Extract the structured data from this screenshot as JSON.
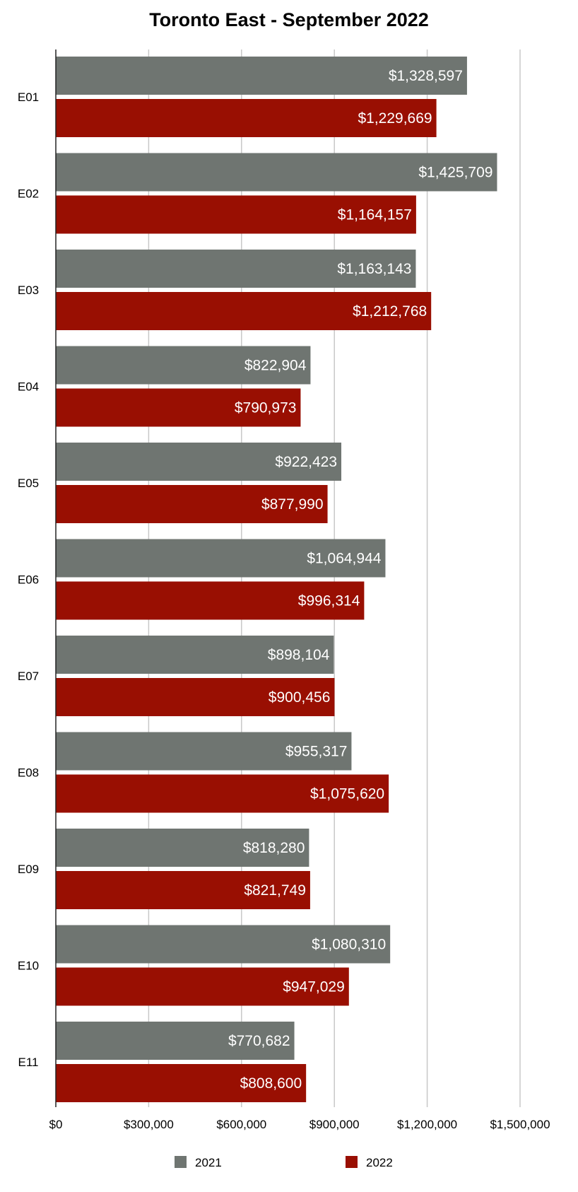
{
  "chart_data": {
    "type": "bar",
    "orientation": "horizontal",
    "title": "Toronto East - September 2022",
    "xlabel": "",
    "ylabel": "",
    "categories": [
      "E01",
      "E02",
      "E03",
      "E04",
      "E05",
      "E06",
      "E07",
      "E08",
      "E09",
      "E10",
      "E11"
    ],
    "xlim": [
      0,
      1500000
    ],
    "xticks": [
      0,
      300000,
      600000,
      900000,
      1200000,
      1500000
    ],
    "xtick_labels": [
      "$0",
      "$300,000",
      "$600,000",
      "$900,000",
      "$1,200,000",
      "$1,500,000"
    ],
    "grid": true,
    "legend_position": "bottom",
    "series": [
      {
        "name": "2021",
        "color": "#6f7571",
        "values": [
          1328597,
          1425709,
          1163143,
          822904,
          922423,
          1064944,
          898104,
          955317,
          818280,
          1080310,
          770682
        ],
        "labels": [
          "$1,328,597",
          "$1,425,709",
          "$1,163,143",
          "$822,904",
          "$922,423",
          "$1,064,944",
          "$898,104",
          "$955,317",
          "$818,280",
          "$1,080,310",
          "$770,682"
        ]
      },
      {
        "name": "2022",
        "color": "#990f02",
        "values": [
          1229669,
          1164157,
          1212768,
          790973,
          877990,
          996314,
          900456,
          1075620,
          821749,
          947029,
          808600
        ],
        "labels": [
          "$1,229,669",
          "$1,164,157",
          "$1,212,768",
          "$790,973",
          "$877,990",
          "$996,314",
          "$900,456",
          "$1,075,620",
          "$821,749",
          "$947,029",
          "$808,600"
        ]
      }
    ]
  }
}
